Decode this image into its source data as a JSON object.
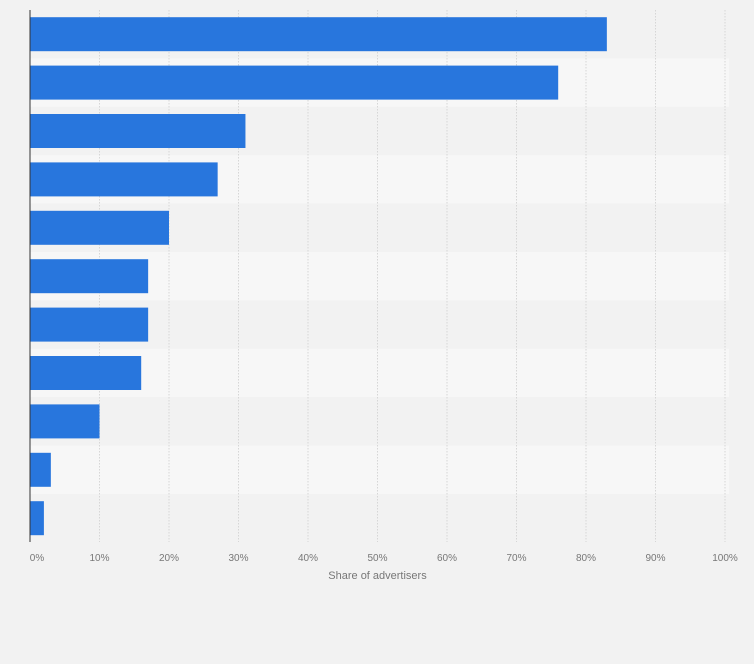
{
  "chart_data": {
    "type": "bar",
    "orientation": "horizontal",
    "categories": [
      "",
      "",
      "",
      "",
      "",
      "",
      "",
      "",
      "",
      "",
      ""
    ],
    "values": [
      83,
      76,
      31,
      27,
      20,
      17,
      17,
      16,
      10,
      3,
      2
    ],
    "xlabel": "Share of advertisers",
    "ylabel": "",
    "xlim": [
      0,
      100
    ],
    "xticks": [
      0,
      10,
      20,
      30,
      40,
      50,
      60,
      70,
      80,
      90,
      100
    ],
    "tick_suffix": "%",
    "grid": true,
    "legend": "none",
    "colors": {
      "bar": "#2876dd",
      "background": "#f2f2f2",
      "band_alt": "#f7f7f7",
      "grid": "#d6d6d6",
      "axis": "#333333",
      "tick_text": "#777777"
    }
  }
}
